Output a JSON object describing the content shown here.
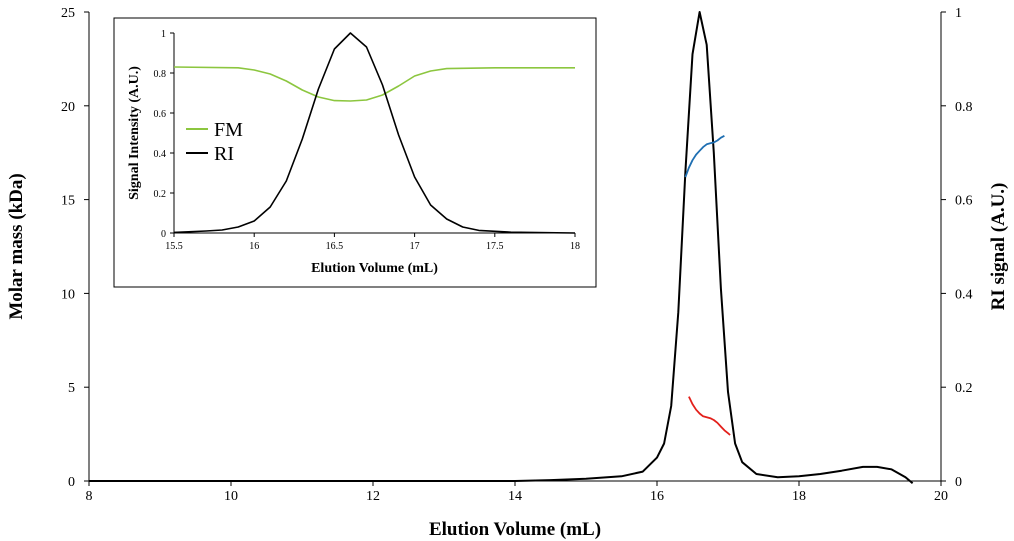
{
  "chart_data": [
    {
      "type": "line",
      "xlabel": "Elution Volume (mL)",
      "ylabel": "Molar mass (kDa)",
      "y2label": "RI signal (A.U.)",
      "xlim": [
        8,
        20
      ],
      "ylim": [
        0,
        25
      ],
      "y2lim": [
        0,
        1
      ],
      "x_ticks": [
        "8",
        "10",
        "12",
        "14",
        "16",
        "18",
        "20"
      ],
      "y_ticks": [
        "0",
        "5",
        "10",
        "15",
        "20",
        "25"
      ],
      "y2_ticks": [
        "0",
        "0.2",
        "0.4",
        "0.6",
        "0.8",
        "1"
      ],
      "grid": false,
      "series": [
        {
          "axis": "y2",
          "color": "#000000",
          "points": [
            [
              8.0,
              0.0
            ],
            [
              14.0,
              0.0
            ],
            [
              14.5,
              0.002
            ],
            [
              15.0,
              0.005
            ],
            [
              15.5,
              0.01
            ],
            [
              15.8,
              0.02
            ],
            [
              16.0,
              0.05
            ],
            [
              16.1,
              0.08
            ],
            [
              16.2,
              0.16
            ],
            [
              16.3,
              0.36
            ],
            [
              16.4,
              0.66
            ],
            [
              16.5,
              0.91
            ],
            [
              16.6,
              1.0
            ],
            [
              16.7,
              0.93
            ],
            [
              16.8,
              0.7
            ],
            [
              16.9,
              0.41
            ],
            [
              17.0,
              0.19
            ],
            [
              17.1,
              0.08
            ],
            [
              17.2,
              0.04
            ],
            [
              17.4,
              0.015
            ],
            [
              17.7,
              0.008
            ],
            [
              18.0,
              0.01
            ],
            [
              18.3,
              0.015
            ],
            [
              18.6,
              0.022
            ],
            [
              18.9,
              0.03
            ],
            [
              19.1,
              0.03
            ],
            [
              19.3,
              0.025
            ],
            [
              19.5,
              0.008
            ],
            [
              19.6,
              -0.005
            ]
          ]
        },
        {
          "axis": "y",
          "color": "#1f6fb2",
          "points": [
            [
              16.4,
              16.2
            ],
            [
              16.45,
              16.7
            ],
            [
              16.5,
              17.1
            ],
            [
              16.55,
              17.4
            ],
            [
              16.6,
              17.6
            ],
            [
              16.65,
              17.8
            ],
            [
              16.7,
              17.95
            ],
            [
              16.75,
              18.0
            ],
            [
              16.8,
              18.05
            ],
            [
              16.85,
              18.15
            ],
            [
              16.9,
              18.3
            ],
            [
              16.95,
              18.4
            ]
          ]
        },
        {
          "axis": "y",
          "color": "#e3201b",
          "points": [
            [
              16.45,
              4.5
            ],
            [
              16.5,
              4.1
            ],
            [
              16.55,
              3.8
            ],
            [
              16.6,
              3.6
            ],
            [
              16.65,
              3.45
            ],
            [
              16.7,
              3.4
            ],
            [
              16.75,
              3.35
            ],
            [
              16.8,
              3.25
            ],
            [
              16.85,
              3.1
            ],
            [
              16.9,
              2.9
            ],
            [
              16.95,
              2.7
            ],
            [
              17.0,
              2.55
            ],
            [
              17.03,
              2.45
            ]
          ]
        }
      ]
    },
    {
      "type": "line",
      "xlabel": "Elution Volume (mL)",
      "ylabel": "Signal Intensity (A.U.)",
      "xlim": [
        15.5,
        18
      ],
      "ylim": [
        0,
        1
      ],
      "x_ticks": [
        "15.5",
        "16",
        "16.5",
        "17",
        "17.5",
        "18"
      ],
      "y_ticks": [
        "0",
        "0.2",
        "0.4",
        "0.6",
        "0.8",
        "1"
      ],
      "grid": false,
      "legend_position": "left",
      "series": [
        {
          "name": "FM",
          "color": "#8cc63f",
          "points": [
            [
              15.5,
              0.83
            ],
            [
              15.9,
              0.826
            ],
            [
              16.0,
              0.815
            ],
            [
              16.1,
              0.795
            ],
            [
              16.2,
              0.76
            ],
            [
              16.3,
              0.715
            ],
            [
              16.4,
              0.68
            ],
            [
              16.5,
              0.662
            ],
            [
              16.6,
              0.66
            ],
            [
              16.7,
              0.665
            ],
            [
              16.8,
              0.69
            ],
            [
              16.9,
              0.735
            ],
            [
              17.0,
              0.785
            ],
            [
              17.1,
              0.81
            ],
            [
              17.2,
              0.822
            ],
            [
              17.5,
              0.826
            ],
            [
              18.0,
              0.826
            ]
          ]
        },
        {
          "name": "RI",
          "color": "#000000",
          "points": [
            [
              15.5,
              0.003
            ],
            [
              15.7,
              0.01
            ],
            [
              15.8,
              0.015
            ],
            [
              15.9,
              0.03
            ],
            [
              16.0,
              0.06
            ],
            [
              16.1,
              0.13
            ],
            [
              16.2,
              0.26
            ],
            [
              16.3,
              0.47
            ],
            [
              16.4,
              0.72
            ],
            [
              16.5,
              0.92
            ],
            [
              16.6,
              1.0
            ],
            [
              16.7,
              0.93
            ],
            [
              16.8,
              0.74
            ],
            [
              16.9,
              0.49
            ],
            [
              17.0,
              0.28
            ],
            [
              17.1,
              0.14
            ],
            [
              17.2,
              0.07
            ],
            [
              17.3,
              0.03
            ],
            [
              17.4,
              0.013
            ],
            [
              17.6,
              0.004
            ],
            [
              18.0,
              0.0
            ]
          ]
        }
      ]
    }
  ]
}
